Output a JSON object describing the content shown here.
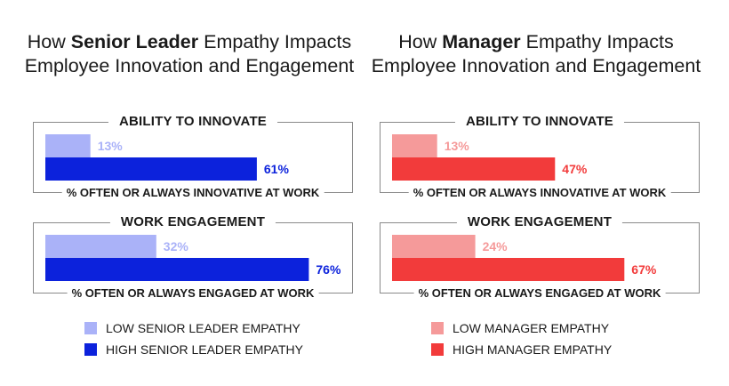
{
  "panels": [
    {
      "title_pre": "How ",
      "title_bold": "Senior Leader",
      "title_post": " Empathy Impacts Employee Innovation and Engagement",
      "colors": {
        "low": "#aab2f8",
        "high": "#0c22dc"
      },
      "legend": {
        "low": "LOW SENIOR LEADER EMPATHY",
        "high": "HIGH SENIOR LEADER EMPATHY"
      }
    },
    {
      "title_pre": "How ",
      "title_bold": "Manager",
      "title_post": " Empathy Impacts Employee Innovation and Engagement",
      "colors": {
        "low": "#f59a9a",
        "high": "#f23b3b"
      },
      "legend": {
        "low": "LOW MANAGER EMPATHY",
        "high": "HIGH MANAGER EMPATHY"
      }
    }
  ],
  "chart_data": [
    {
      "type": "bar",
      "orientation": "horizontal",
      "title": "How Senior Leader Empathy Impacts Employee Innovation and Engagement",
      "xlim": [
        0,
        100
      ],
      "groups": [
        {
          "heading": "ABILITY TO INNOVATE",
          "footnote": "% OFTEN OR ALWAYS INNOVATIVE AT WORK",
          "values": [
            {
              "series": "LOW SENIOR LEADER EMPATHY",
              "value": 13,
              "label": "13%"
            },
            {
              "series": "HIGH SENIOR LEADER EMPATHY",
              "value": 61,
              "label": "61%"
            }
          ]
        },
        {
          "heading": "WORK ENGAGEMENT",
          "footnote": "% OFTEN OR ALWAYS ENGAGED AT WORK",
          "values": [
            {
              "series": "LOW SENIOR LEADER EMPATHY",
              "value": 32,
              "label": "32%"
            },
            {
              "series": "HIGH SENIOR LEADER EMPATHY",
              "value": 76,
              "label": "76%"
            }
          ]
        }
      ]
    },
    {
      "type": "bar",
      "orientation": "horizontal",
      "title": "How Manager Empathy Impacts Employee Innovation and Engagement",
      "xlim": [
        0,
        100
      ],
      "groups": [
        {
          "heading": "ABILITY TO INNOVATE",
          "footnote": "% OFTEN OR ALWAYS INNOVATIVE AT WORK",
          "values": [
            {
              "series": "LOW MANAGER EMPATHY",
              "value": 13,
              "label": "13%"
            },
            {
              "series": "HIGH MANAGER EMPATHY",
              "value": 47,
              "label": "47%"
            }
          ]
        },
        {
          "heading": "WORK ENGAGEMENT",
          "footnote": "% OFTEN OR ALWAYS ENGAGED AT WORK",
          "values": [
            {
              "series": "LOW MANAGER EMPATHY",
              "value": 24,
              "label": "24%"
            },
            {
              "series": "HIGH MANAGER EMPATHY",
              "value": 67,
              "label": "67%"
            }
          ]
        }
      ]
    }
  ]
}
